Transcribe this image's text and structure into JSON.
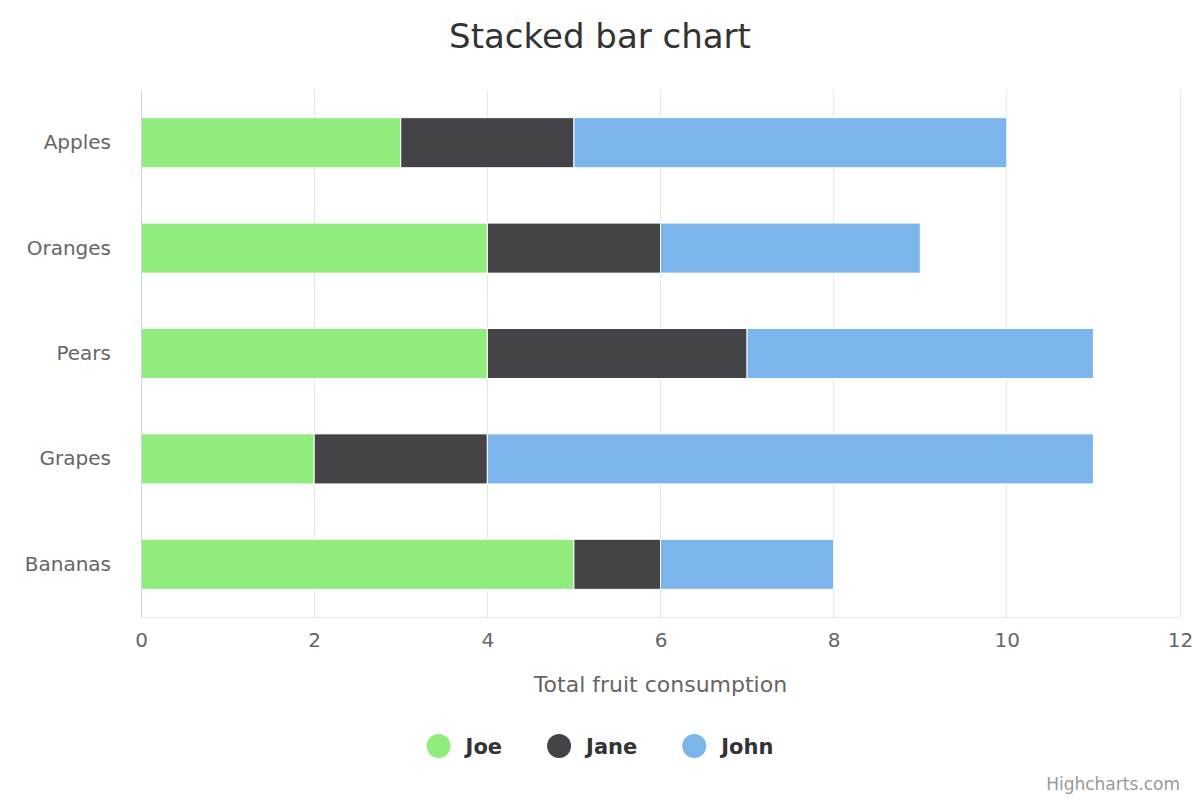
{
  "chart_data": {
    "type": "bar",
    "title": "Stacked bar chart",
    "x_label": "Total fruit consumption",
    "credits": "Highcharts.com",
    "orientation": "horizontal",
    "stacked": true,
    "grid": true,
    "legend": "bottom",
    "categories": [
      "Apples",
      "Oranges",
      "Pears",
      "Grapes",
      "Bananas"
    ],
    "series": [
      {
        "name": "Joe",
        "color": "#90ed7d",
        "values": [
          3,
          4,
          4,
          2,
          5
        ]
      },
      {
        "name": "Jane",
        "color": "#434348",
        "values": [
          2,
          2,
          3,
          2,
          1
        ]
      },
      {
        "name": "John",
        "color": "#7cb5ec",
        "values": [
          5,
          3,
          4,
          7,
          2
        ]
      }
    ],
    "xlim": [
      0,
      12
    ],
    "xticks": [
      0,
      2,
      4,
      6,
      8,
      10,
      12
    ]
  }
}
